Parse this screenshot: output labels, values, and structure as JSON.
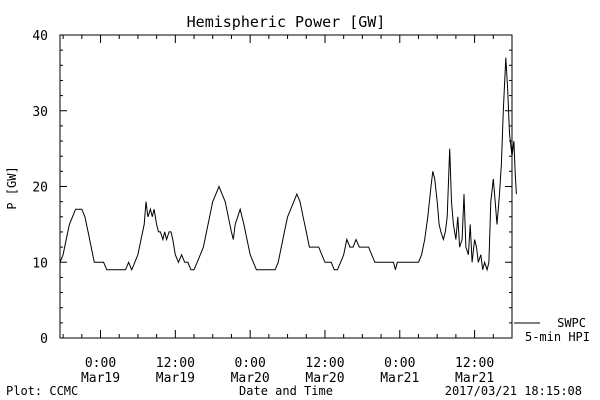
{
  "chart_data": {
    "type": "line",
    "title": "Hemispheric Power [GW]",
    "xlabel": "Date and Time",
    "ylabel": "P [GW]",
    "ylim": [
      0,
      40
    ],
    "y_ticks": [
      "0",
      "10",
      "20",
      "30",
      "40"
    ],
    "x_ticks": [
      {
        "time": "0:00",
        "date": "Mar19",
        "hours": 0
      },
      {
        "time": "12:00",
        "date": "Mar19",
        "hours": 12
      },
      {
        "time": "0:00",
        "date": "Mar20",
        "hours": 24
      },
      {
        "time": "12:00",
        "date": "Mar20",
        "hours": 36
      },
      {
        "time": "0:00",
        "date": "Mar21",
        "hours": 48
      },
      {
        "time": "12:00",
        "date": "Mar21",
        "hours": 60
      }
    ],
    "x_range_hours": [
      -6.5,
      66
    ],
    "legend": {
      "placement": "bottom-right",
      "entries": [
        "SWPC",
        "5-min HPI"
      ]
    },
    "series": [
      {
        "name": "SWPC",
        "color": "#000000",
        "points": [
          [
            -6.5,
            10
          ],
          [
            -6.0,
            11
          ],
          [
            -5.5,
            13
          ],
          [
            -5.0,
            15
          ],
          [
            -4.5,
            16
          ],
          [
            -4.0,
            17
          ],
          [
            -3.0,
            17
          ],
          [
            -2.5,
            16
          ],
          [
            -2.0,
            14
          ],
          [
            -1.5,
            12
          ],
          [
            -1.0,
            10
          ],
          [
            -0.5,
            10
          ],
          [
            0.5,
            10
          ],
          [
            1.0,
            9
          ],
          [
            3.0,
            9
          ],
          [
            4.0,
            9
          ],
          [
            4.5,
            10
          ],
          [
            5.0,
            9
          ],
          [
            5.5,
            10
          ],
          [
            6.0,
            11
          ],
          [
            6.5,
            13
          ],
          [
            7.0,
            15
          ],
          [
            7.3,
            18
          ],
          [
            7.6,
            16
          ],
          [
            8.0,
            17
          ],
          [
            8.3,
            16
          ],
          [
            8.6,
            17
          ],
          [
            9.0,
            15
          ],
          [
            9.3,
            14
          ],
          [
            9.6,
            14
          ],
          [
            10.0,
            13
          ],
          [
            10.3,
            14
          ],
          [
            10.6,
            13
          ],
          [
            11.0,
            14
          ],
          [
            11.3,
            14
          ],
          [
            11.6,
            13
          ],
          [
            12.0,
            11
          ],
          [
            12.5,
            10
          ],
          [
            13.0,
            11
          ],
          [
            13.5,
            10
          ],
          [
            14.0,
            10
          ],
          [
            14.5,
            9
          ],
          [
            15.0,
            9
          ],
          [
            15.5,
            10
          ],
          [
            16.0,
            11
          ],
          [
            16.5,
            12
          ],
          [
            17.0,
            14
          ],
          [
            17.5,
            16
          ],
          [
            18.0,
            18
          ],
          [
            18.5,
            19
          ],
          [
            19.0,
            20
          ],
          [
            19.5,
            19
          ],
          [
            20.0,
            18
          ],
          [
            20.5,
            16
          ],
          [
            21.0,
            14
          ],
          [
            21.3,
            13
          ],
          [
            21.6,
            15
          ],
          [
            22.0,
            16
          ],
          [
            22.4,
            17
          ],
          [
            22.7,
            16
          ],
          [
            23.0,
            15
          ],
          [
            23.5,
            13
          ],
          [
            24.0,
            11
          ],
          [
            24.5,
            10
          ],
          [
            25.0,
            9
          ],
          [
            27.0,
            9
          ],
          [
            28.0,
            9
          ],
          [
            28.5,
            10
          ],
          [
            29.0,
            12
          ],
          [
            29.5,
            14
          ],
          [
            30.0,
            16
          ],
          [
            30.5,
            17
          ],
          [
            31.0,
            18
          ],
          [
            31.5,
            19
          ],
          [
            32.0,
            18
          ],
          [
            32.5,
            16
          ],
          [
            33.0,
            14
          ],
          [
            33.5,
            12
          ],
          [
            34.0,
            12
          ],
          [
            35.0,
            12
          ],
          [
            35.5,
            11
          ],
          [
            36.0,
            10
          ],
          [
            37.0,
            10
          ],
          [
            37.5,
            9
          ],
          [
            38.0,
            9
          ],
          [
            38.5,
            10
          ],
          [
            39.0,
            11
          ],
          [
            39.5,
            13
          ],
          [
            40.0,
            12
          ],
          [
            40.5,
            12
          ],
          [
            41.0,
            13
          ],
          [
            41.5,
            12
          ],
          [
            42.0,
            12
          ],
          [
            43.0,
            12
          ],
          [
            43.5,
            11
          ],
          [
            44.0,
            10
          ],
          [
            47.0,
            10
          ],
          [
            47.3,
            9
          ],
          [
            47.6,
            10
          ],
          [
            48.0,
            10
          ],
          [
            49.0,
            10
          ],
          [
            50.0,
            10
          ],
          [
            51.0,
            10
          ],
          [
            51.5,
            11
          ],
          [
            52.0,
            13
          ],
          [
            52.5,
            16
          ],
          [
            53.0,
            20
          ],
          [
            53.3,
            22
          ],
          [
            53.6,
            21
          ],
          [
            54.0,
            18
          ],
          [
            54.3,
            15
          ],
          [
            54.6,
            14
          ],
          [
            55.0,
            13
          ],
          [
            55.3,
            14
          ],
          [
            55.6,
            16
          ],
          [
            56.0,
            25
          ],
          [
            56.3,
            18
          ],
          [
            56.6,
            15
          ],
          [
            57.0,
            13
          ],
          [
            57.3,
            16
          ],
          [
            57.6,
            12
          ],
          [
            58.0,
            13
          ],
          [
            58.3,
            19
          ],
          [
            58.6,
            12
          ],
          [
            59.0,
            11
          ],
          [
            59.3,
            15
          ],
          [
            59.6,
            10
          ],
          [
            60.0,
            13
          ],
          [
            60.3,
            12
          ],
          [
            60.6,
            10
          ],
          [
            61.0,
            11
          ],
          [
            61.3,
            9
          ],
          [
            61.6,
            10
          ],
          [
            62.0,
            9
          ],
          [
            62.3,
            10
          ],
          [
            62.6,
            18
          ],
          [
            63.0,
            21
          ],
          [
            63.3,
            18
          ],
          [
            63.6,
            15
          ],
          [
            64.0,
            19
          ],
          [
            64.3,
            23
          ],
          [
            64.6,
            30
          ],
          [
            65.0,
            37
          ],
          [
            65.3,
            33
          ],
          [
            65.6,
            27
          ],
          [
            66.0,
            24
          ],
          [
            66.3,
            26
          ],
          [
            66.5,
            22
          ],
          [
            66.7,
            19
          ]
        ]
      }
    ]
  },
  "footer": {
    "left": "Plot: CCMC",
    "right": "2017/03/21  18:15:08"
  }
}
